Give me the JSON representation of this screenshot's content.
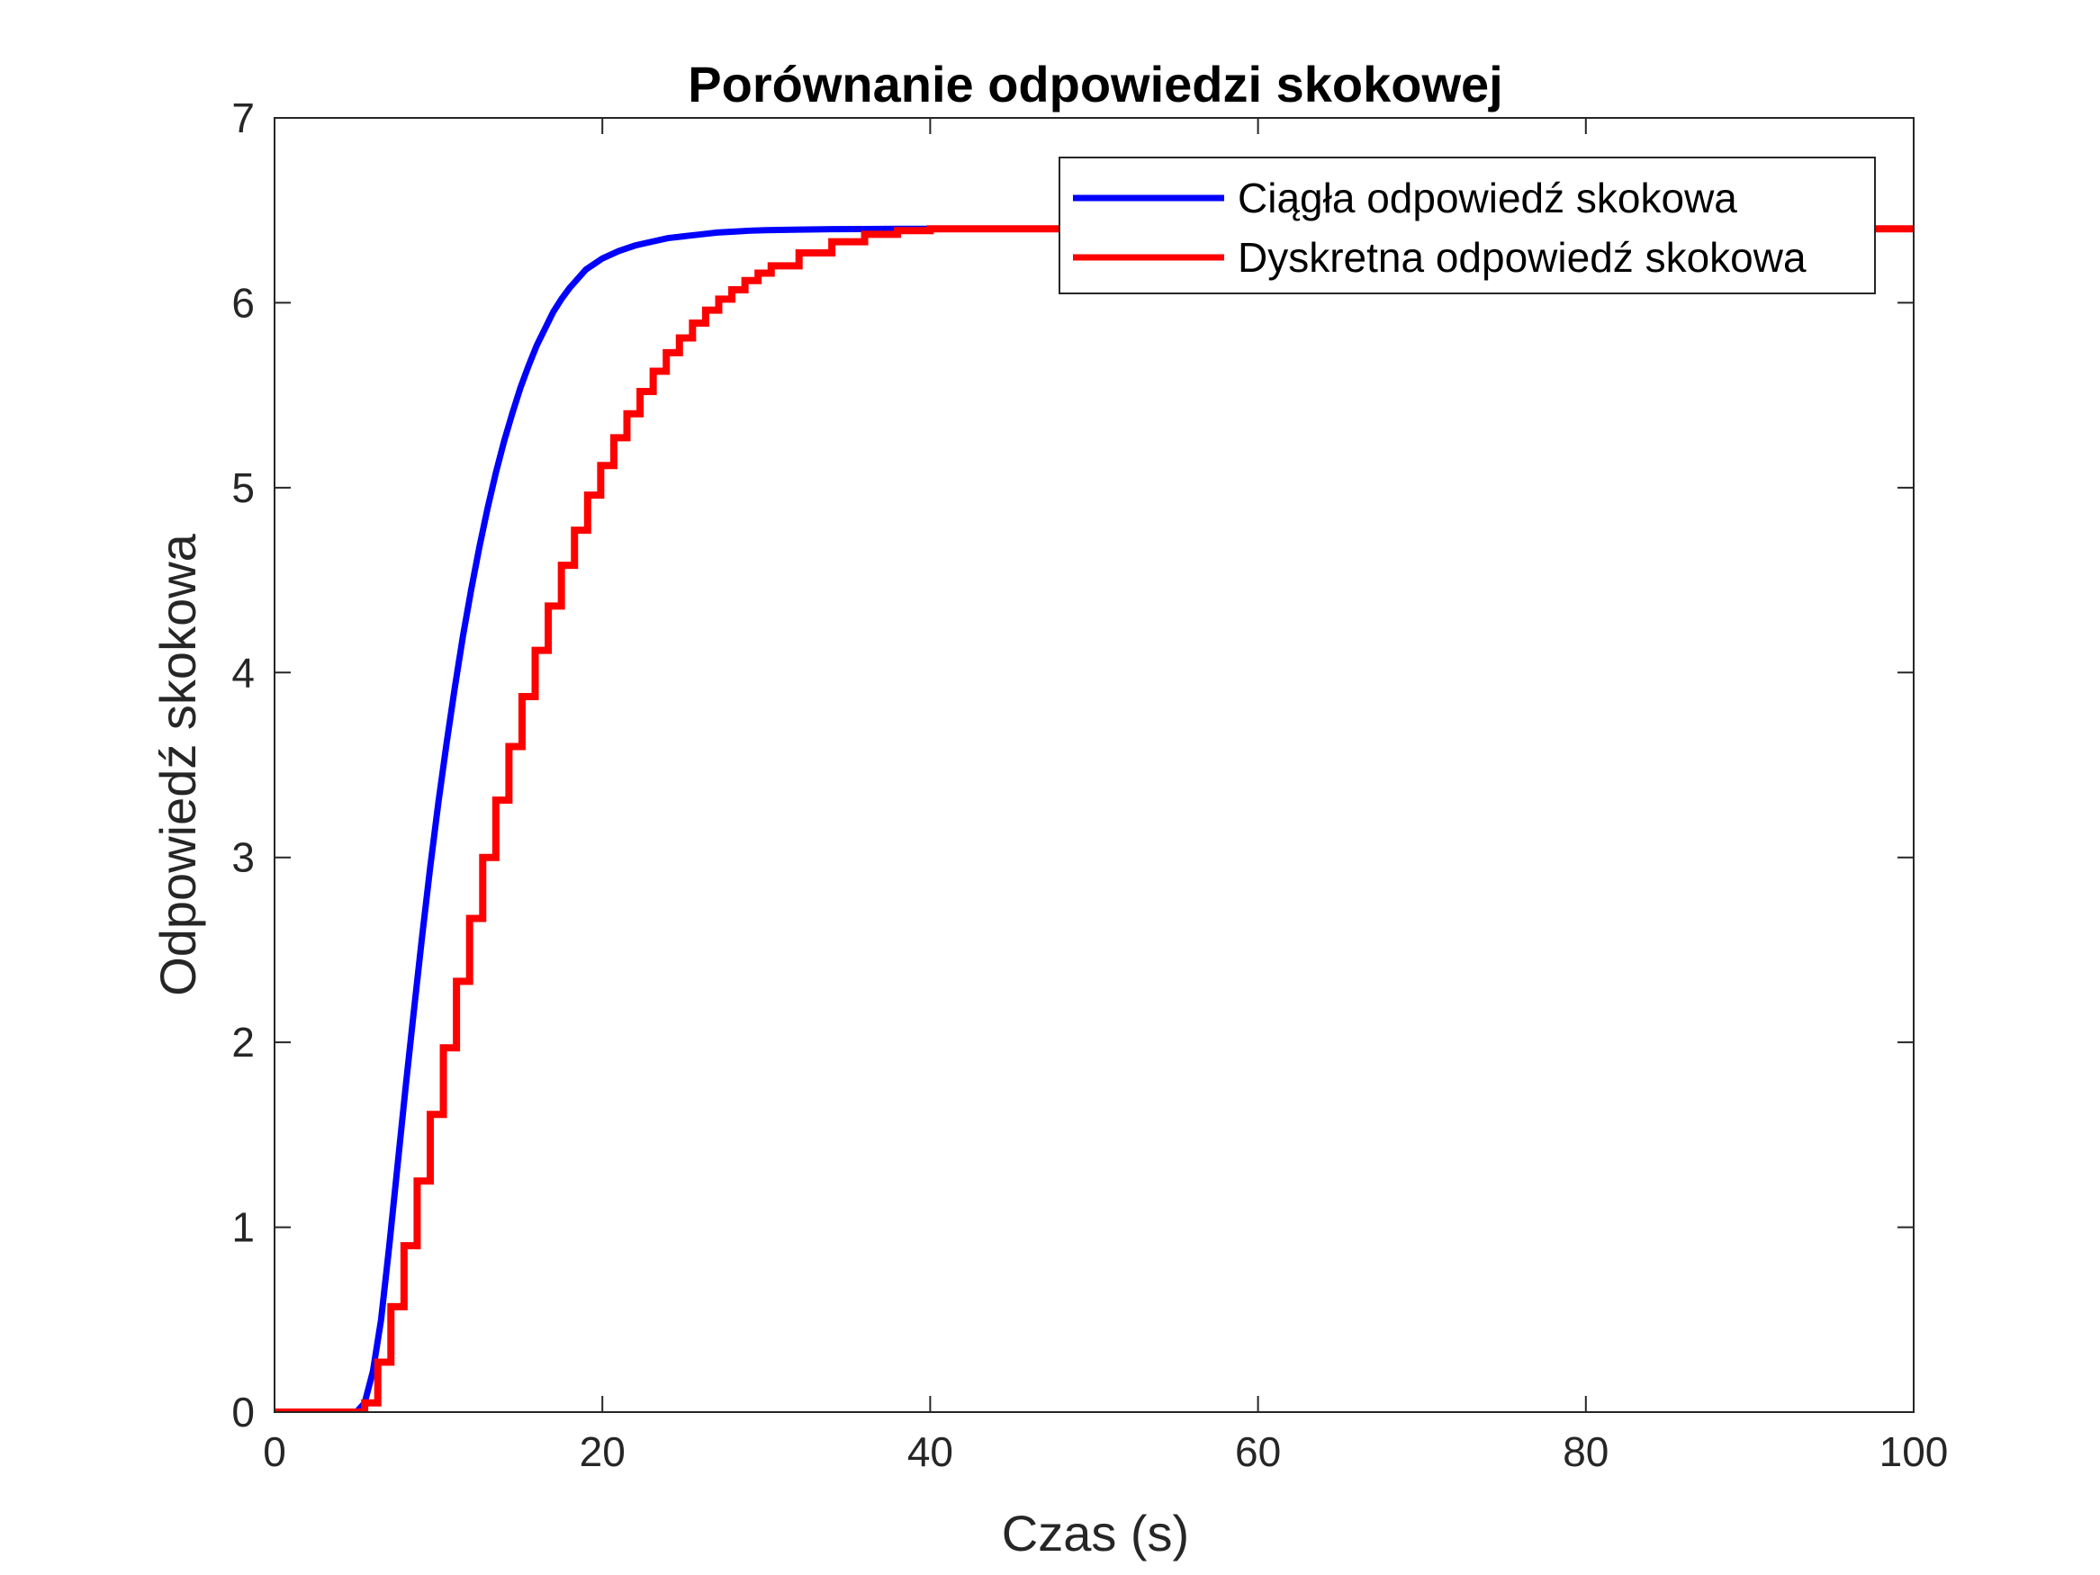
{
  "chart_data": {
    "type": "line",
    "title": "Porównanie odpowiedzi skokowej",
    "xlabel": "Czas (s)",
    "ylabel": "Odpowiedź skokowa",
    "xlim": [
      0,
      100
    ],
    "ylim": [
      0,
      7
    ],
    "xticks": [
      0,
      20,
      40,
      60,
      80,
      100
    ],
    "yticks": [
      0,
      1,
      2,
      3,
      4,
      5,
      6,
      7
    ],
    "grid": false,
    "box": true,
    "legend_position": "top-right",
    "colors": {
      "axes": "#262626",
      "continuous": "#0000ff",
      "discrete": "#ff0000"
    },
    "series": [
      {
        "name": "Ciągła odpowiedź skokowa",
        "style": "continuous",
        "color": "#0000ff",
        "x": [
          0,
          5,
          5.5,
          6,
          6.5,
          7,
          7.5,
          8,
          8.5,
          9,
          9.5,
          10,
          10.5,
          11,
          11.5,
          12,
          12.5,
          13,
          13.5,
          14,
          14.5,
          15,
          15.5,
          16,
          16.5,
          17,
          17.5,
          18,
          18.5,
          19,
          19.5,
          20,
          21,
          22,
          23,
          24,
          25,
          26,
          27,
          28,
          29,
          30,
          32,
          34,
          36,
          38,
          40,
          45,
          50,
          60,
          70,
          80,
          90,
          100
        ],
        "y": [
          0,
          0,
          0.05,
          0.22,
          0.5,
          0.9,
          1.33,
          1.76,
          2.17,
          2.57,
          2.95,
          3.3,
          3.62,
          3.92,
          4.2,
          4.45,
          4.68,
          4.89,
          5.08,
          5.25,
          5.4,
          5.54,
          5.66,
          5.77,
          5.86,
          5.95,
          6.02,
          6.08,
          6.13,
          6.18,
          6.21,
          6.24,
          6.28,
          6.31,
          6.33,
          6.35,
          6.36,
          6.37,
          6.38,
          6.385,
          6.39,
          6.393,
          6.396,
          6.398,
          6.399,
          6.4,
          6.4,
          6.4,
          6.4,
          6.4,
          6.4,
          6.4,
          6.4,
          6.4
        ]
      },
      {
        "name": "Dyskretna odpowiedź skokowa",
        "style": "stairs",
        "color": "#ff0000",
        "x": [
          0,
          5.5,
          6.3,
          7.1,
          7.9,
          8.7,
          9.5,
          10.3,
          11.1,
          11.9,
          12.7,
          13.5,
          14.3,
          15.1,
          15.9,
          16.7,
          17.5,
          18.3,
          19.1,
          19.9,
          20.7,
          21.5,
          22.3,
          23.1,
          23.9,
          24.7,
          25.5,
          26.3,
          27.1,
          27.9,
          28.7,
          29.5,
          30.3,
          32,
          34,
          36,
          38,
          40,
          100
        ],
        "y": [
          0,
          0.05,
          0.27,
          0.57,
          0.9,
          1.25,
          1.61,
          1.97,
          2.33,
          2.67,
          3.0,
          3.31,
          3.6,
          3.87,
          4.12,
          4.36,
          4.58,
          4.77,
          4.96,
          5.12,
          5.27,
          5.4,
          5.52,
          5.63,
          5.73,
          5.81,
          5.89,
          5.96,
          6.02,
          6.07,
          6.12,
          6.16,
          6.2,
          6.27,
          6.33,
          6.37,
          6.39,
          6.4,
          6.4
        ]
      }
    ]
  }
}
